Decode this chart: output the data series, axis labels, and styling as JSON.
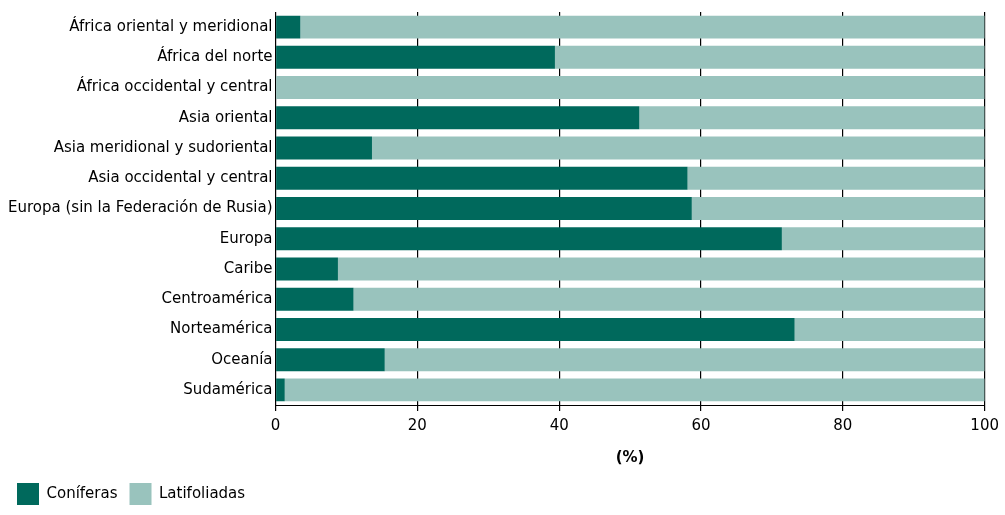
{
  "chart_data": {
    "type": "bar",
    "orientation": "horizontal",
    "stacked": true,
    "xlabel": "(%)",
    "categories": [
      "África oriental y meridional",
      "África del norte",
      "África occidental y central",
      "Asia oriental",
      "Asia meridional y sudoriental",
      "Asia occidental y central",
      "Europa (sin la Federación de Rusia)",
      "Europa",
      "Caribe",
      "Centroamérica",
      "Norteamérica",
      "Oceanía",
      "Sudamérica"
    ],
    "series": [
      {
        "name": "Coníferas",
        "color": "#00695c",
        "values": [
          3.5,
          39.4,
          0,
          51.3,
          13.6,
          58.1,
          58.7,
          71.4,
          8.8,
          11.0,
          73.2,
          15.4,
          1.3
        ]
      },
      {
        "name": "Latifoliadas",
        "color": "#99c3bd",
        "values": [
          96.5,
          60.6,
          100,
          48.7,
          86.4,
          41.9,
          41.3,
          28.6,
          91.2,
          89.0,
          26.8,
          84.6,
          98.7
        ]
      }
    ],
    "xlim": [
      0,
      100
    ],
    "xticks": [
      0,
      20,
      40,
      60,
      80,
      100
    ],
    "grid": "x",
    "legend": "bottom left"
  }
}
